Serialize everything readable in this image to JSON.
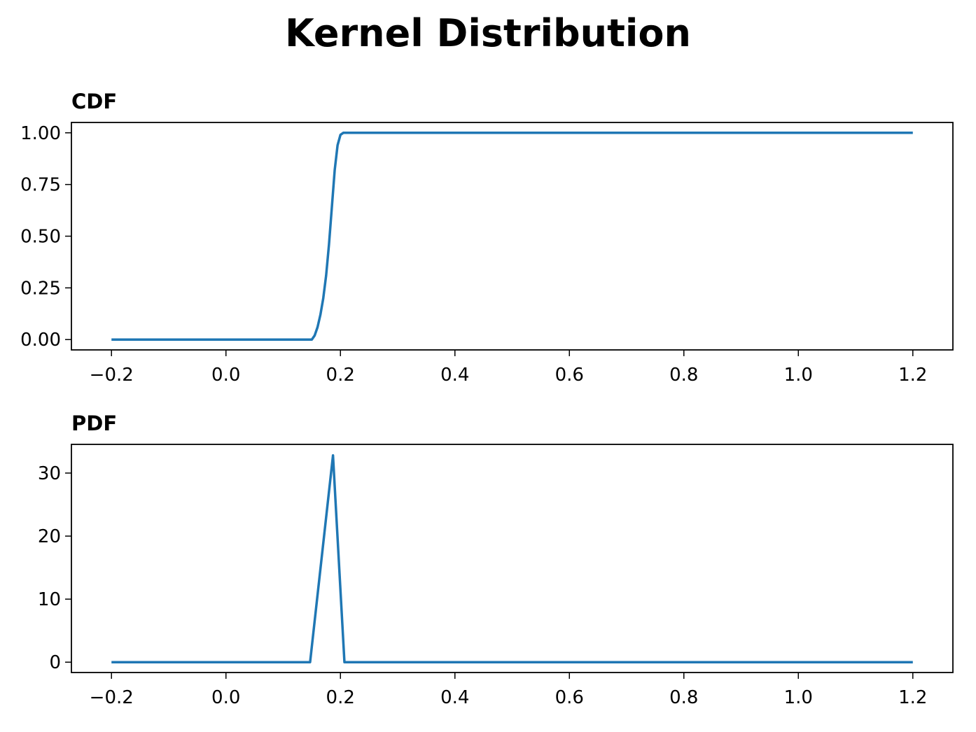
{
  "title": "Kernel Distribution",
  "chart_data": [
    {
      "type": "line",
      "title": "CDF",
      "x": [
        -0.2,
        0.15,
        0.155,
        0.16,
        0.165,
        0.17,
        0.175,
        0.18,
        0.185,
        0.19,
        0.195,
        0.2,
        0.205,
        1.2
      ],
      "series": [
        {
          "color": "#1f77b4",
          "values": [
            0,
            0,
            0.02,
            0.06,
            0.12,
            0.2,
            0.31,
            0.46,
            0.64,
            0.82,
            0.94,
            0.99,
            1.0,
            1.0
          ]
        }
      ],
      "xlim": [
        -0.27,
        1.27
      ],
      "xticks": [
        {
          "value": -0.2,
          "label": "−0.2"
        },
        {
          "value": 0,
          "label": "0.0"
        },
        0.2,
        0.4,
        0.6,
        0.8,
        {
          "value": 1,
          "label": "1.0"
        },
        1.2
      ],
      "ylim": [
        -0.05,
        1.05
      ],
      "yticks": [
        {
          "value": 0,
          "label": "0.00"
        },
        {
          "value": 0.25,
          "label": "0.25"
        },
        {
          "value": 0.5,
          "label": "0.50"
        },
        {
          "value": 0.75,
          "label": "0.75"
        },
        {
          "value": 1,
          "label": "1.00"
        }
      ]
    },
    {
      "type": "line",
      "title": "PDF",
      "x": [
        -0.2,
        0.147,
        0.187,
        0.207,
        1.2
      ],
      "series": [
        {
          "color": "#1f77b4",
          "values": [
            0,
            0,
            32.8,
            0,
            0
          ]
        }
      ],
      "xlim": [
        -0.27,
        1.27
      ],
      "xticks": [
        {
          "value": -0.2,
          "label": "−0.2"
        },
        {
          "value": 0,
          "label": "0.0"
        },
        0.2,
        0.4,
        0.6,
        0.8,
        {
          "value": 1,
          "label": "1.0"
        },
        1.2
      ],
      "ylim": [
        -1.64,
        34.55
      ],
      "yticks": [
        0,
        10,
        20,
        30
      ]
    }
  ]
}
